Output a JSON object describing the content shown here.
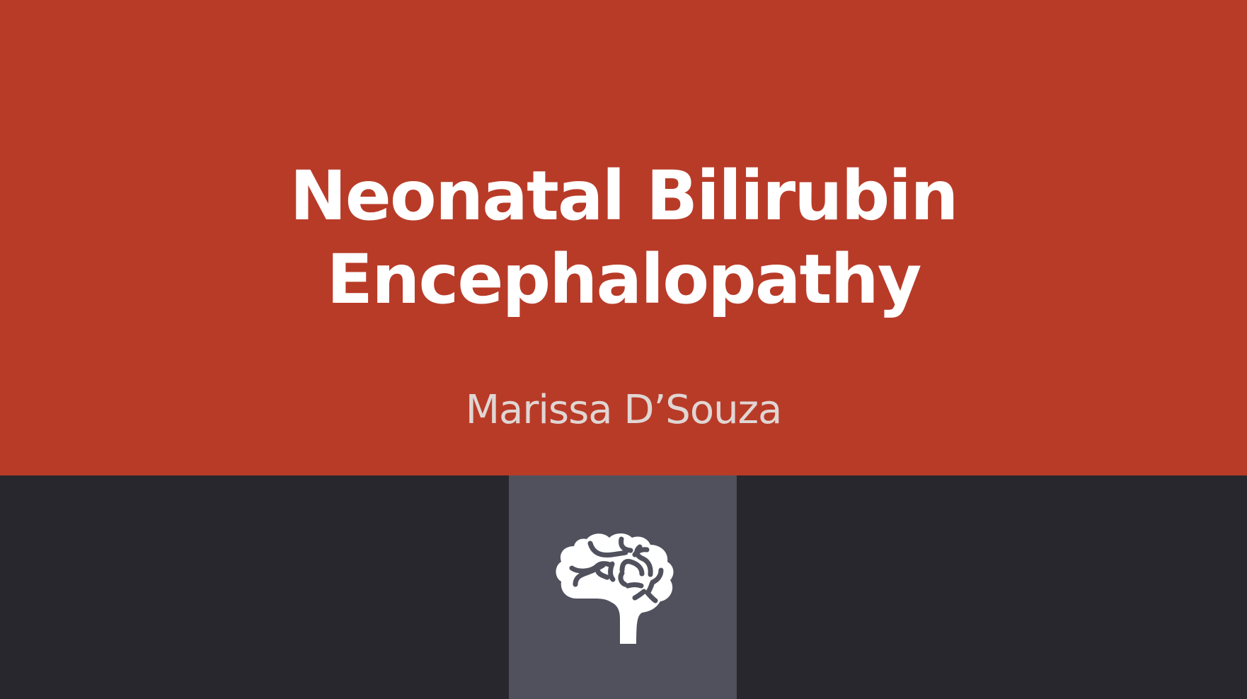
{
  "slide": {
    "title_line1": "Neonatal Bilirubin",
    "title_line2": "Encephalopathy",
    "author": "Marissa D’Souza",
    "icon": "brain-icon"
  },
  "colors": {
    "top_background": "#b83b28",
    "bottom_background": "#28272d",
    "icon_box_background": "#50515d",
    "title_text": "#ffffff",
    "author_text": "#e0d6d3",
    "icon_fill": "#ffffff"
  }
}
